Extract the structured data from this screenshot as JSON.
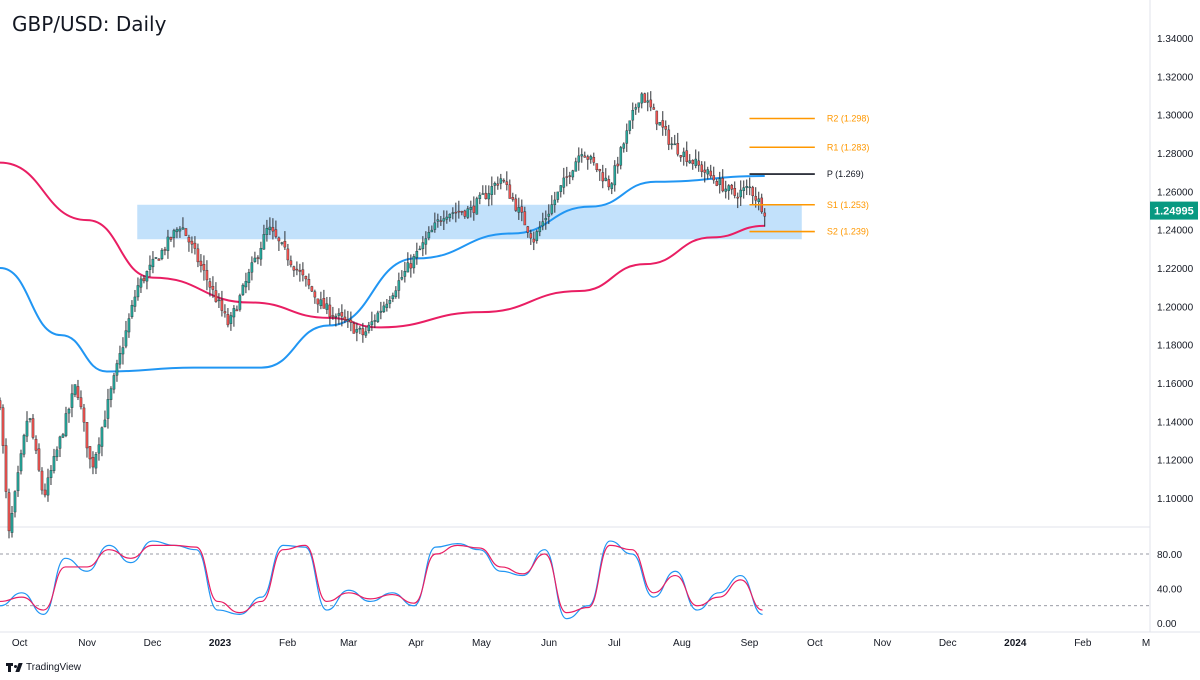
{
  "title": "GBP/USD: Daily",
  "footer": {
    "brand": "TradingView",
    "logo_icon": "tradingview-logo-icon"
  },
  "colors": {
    "up": "#26a69a",
    "down": "#ef5350",
    "candle": "#2e3136",
    "ma_fast": "#2196f3",
    "ma_slow": "#e91e63",
    "zone": "#bbdefb",
    "pivot": "#131722",
    "sr": "#ff9800",
    "stoch_k": "#2196f3",
    "stoch_d": "#e91e63",
    "price_badge": "#089981"
  },
  "chart_data": [
    {
      "type": "candlestick",
      "title": "GBP/USD: Daily",
      "ylim": [
        1.085,
        1.355
      ],
      "y_ticks": [
        "1.10000",
        "1.12000",
        "1.14000",
        "1.16000",
        "1.18000",
        "1.20000",
        "1.22000",
        "1.24000",
        "1.26000",
        "1.28000",
        "1.30000",
        "1.32000",
        "1.34000"
      ],
      "x_ticks": [
        "Oct",
        "Nov",
        "Dec",
        "2023",
        "Feb",
        "Mar",
        "Apr",
        "May",
        "Jun",
        "Jul",
        "Aug",
        "Sep",
        "Oct",
        "Nov",
        "Dec",
        "2024",
        "Feb",
        "M"
      ],
      "last_price": "1.24995",
      "price_path": [
        [
          "2022-09-22",
          1.15
        ],
        [
          "2022-09-26",
          1.08
        ],
        [
          "2022-10-05",
          1.145
        ],
        [
          "2022-10-12",
          1.1
        ],
        [
          "2022-10-27",
          1.16
        ],
        [
          "2022-11-03",
          1.115
        ],
        [
          "2022-11-24",
          1.21
        ],
        [
          "2022-12-14",
          1.243
        ],
        [
          "2023-01-05",
          1.19
        ],
        [
          "2023-01-23",
          1.241
        ],
        [
          "2023-02-17",
          1.2
        ],
        [
          "2023-03-08",
          1.185
        ],
        [
          "2023-04-14",
          1.249
        ],
        [
          "2023-04-26",
          1.25
        ],
        [
          "2023-05-10",
          1.267
        ],
        [
          "2023-05-25",
          1.235
        ],
        [
          "2023-06-16",
          1.282
        ],
        [
          "2023-06-29",
          1.263
        ],
        [
          "2023-07-13",
          1.312
        ],
        [
          "2023-07-27",
          1.285
        ],
        [
          "2023-08-14",
          1.268
        ],
        [
          "2023-08-25",
          1.258
        ],
        [
          "2023-09-01",
          1.262
        ],
        [
          "2023-09-08",
          1.2499
        ]
      ],
      "support_zone": {
        "from": 1.235,
        "to": 1.253
      },
      "moving_averages": [
        {
          "points": [
            [
              "2022-09-22",
              1.22
            ],
            [
              "2022-10-20",
              1.185
            ],
            [
              "2022-11-10",
              1.166
            ],
            [
              "2022-12-20",
              1.168
            ],
            [
              "2023-01-20",
              1.168
            ],
            [
              "2023-02-20",
              1.19
            ],
            [
              "2023-04-01",
              1.225
            ],
            [
              "2023-05-15",
              1.238
            ],
            [
              "2023-06-20",
              1.252
            ],
            [
              "2023-07-20",
              1.265
            ],
            [
              "2023-09-08",
              1.268
            ]
          ]
        },
        {
          "points": [
            [
              "2022-09-22",
              1.275
            ],
            [
              "2022-11-01",
              1.245
            ],
            [
              "2022-12-01",
              1.215
            ],
            [
              "2023-01-15",
              1.202
            ],
            [
              "2023-02-20",
              1.194
            ],
            [
              "2023-03-15",
              1.189
            ],
            [
              "2023-05-01",
              1.197
            ],
            [
              "2023-06-15",
              1.208
            ],
            [
              "2023-07-15",
              1.222
            ],
            [
              "2023-08-15",
              1.236
            ],
            [
              "2023-09-08",
              1.242
            ]
          ]
        }
      ],
      "pivot_levels": [
        {
          "label": "R2 (1.298)",
          "value": 1.298,
          "role": "resistance"
        },
        {
          "label": "R1 (1.283)",
          "value": 1.283,
          "role": "resistance"
        },
        {
          "label": "P (1.269)",
          "value": 1.269,
          "role": "pivot"
        },
        {
          "label": "S1 (1.253)",
          "value": 1.253,
          "role": "support"
        },
        {
          "label": "S2 (1.239)",
          "value": 1.239,
          "role": "support"
        }
      ]
    },
    {
      "type": "line",
      "subtype": "stochastic",
      "ylim": [
        -5,
        110
      ],
      "y_ticks": [
        "0.00",
        "40.00",
        "80.00"
      ],
      "reference_lines": [
        20,
        80
      ],
      "series": [
        {
          "key": "k",
          "x": [
            "2022-09-22",
            "2022-10-02",
            "2022-10-12",
            "2022-10-22",
            "2022-11-01",
            "2022-11-11",
            "2022-11-21",
            "2022-12-01",
            "2022-12-11",
            "2022-12-21",
            "2022-12-31",
            "2023-01-10",
            "2023-01-20",
            "2023-01-30",
            "2023-02-09",
            "2023-02-19",
            "2023-03-01",
            "2023-03-11",
            "2023-03-21",
            "2023-03-31",
            "2023-04-10",
            "2023-04-20",
            "2023-04-30",
            "2023-05-10",
            "2023-05-20",
            "2023-05-30",
            "2023-06-09",
            "2023-06-19",
            "2023-06-29",
            "2023-07-09",
            "2023-07-19",
            "2023-07-29",
            "2023-08-08",
            "2023-08-18",
            "2023-08-28",
            "2023-09-07"
          ],
          "values": [
            20,
            35,
            10,
            75,
            60,
            90,
            70,
            95,
            90,
            85,
            15,
            10,
            30,
            90,
            88,
            15,
            38,
            25,
            35,
            20,
            88,
            92,
            85,
            60,
            55,
            85,
            5,
            20,
            95,
            80,
            30,
            60,
            15,
            35,
            55,
            10
          ]
        },
        {
          "key": "d",
          "x": [
            "2022-09-22",
            "2022-10-02",
            "2022-10-12",
            "2022-10-22",
            "2022-11-01",
            "2022-11-11",
            "2022-11-21",
            "2022-12-01",
            "2022-12-11",
            "2022-12-21",
            "2022-12-31",
            "2023-01-10",
            "2023-01-20",
            "2023-01-30",
            "2023-02-09",
            "2023-02-19",
            "2023-03-01",
            "2023-03-11",
            "2023-03-21",
            "2023-03-31",
            "2023-04-10",
            "2023-04-20",
            "2023-04-30",
            "2023-05-10",
            "2023-05-20",
            "2023-05-30",
            "2023-06-09",
            "2023-06-19",
            "2023-06-29",
            "2023-07-09",
            "2023-07-19",
            "2023-07-29",
            "2023-08-08",
            "2023-08-18",
            "2023-08-28",
            "2023-09-07"
          ],
          "values": [
            25,
            30,
            15,
            65,
            65,
            85,
            75,
            90,
            90,
            88,
            25,
            12,
            25,
            85,
            90,
            25,
            35,
            28,
            33,
            23,
            80,
            90,
            87,
            65,
            57,
            80,
            12,
            18,
            90,
            85,
            35,
            55,
            20,
            30,
            50,
            15
          ]
        }
      ]
    }
  ]
}
